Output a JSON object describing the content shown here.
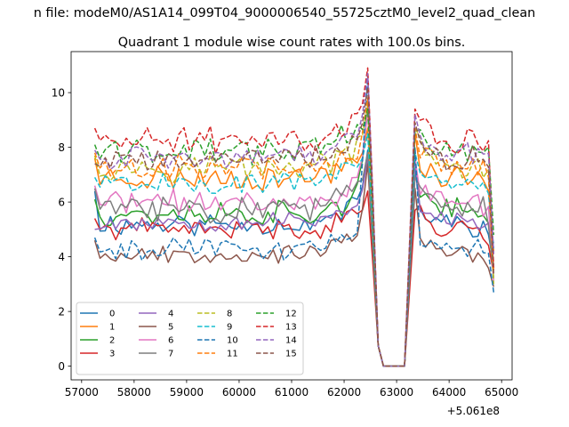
{
  "chart_data": {
    "type": "line",
    "suptitle": "n file: modeM0/AS1A14_099T04_9000006540_55725cztM0_level2_quad_clean",
    "title": "Quadrant 1 module wise count rates with 100.0s bins.",
    "xlabel": "",
    "ylabel": "",
    "x_offset_label": "+5.061e8",
    "xlim": [
      56800,
      65200
    ],
    "ylim": [
      -0.5,
      11.5
    ],
    "xticks": [
      "57000",
      "58000",
      "59000",
      "60000",
      "61000",
      "62000",
      "63000",
      "64000",
      "65000"
    ],
    "yticks": [
      "0",
      "2",
      "4",
      "6",
      "8",
      "10"
    ],
    "grid": false,
    "legend_position": "lower-left",
    "legend_columns": 4,
    "x": {
      "start": 57250,
      "step": 100,
      "count": 77
    },
    "gap_range": [
      62650,
      63150
    ],
    "peak": {
      "x": 62450,
      "values": [
        7.9,
        8.7,
        9.5,
        6.4,
        7.6,
        7.4,
        9.3,
        7.8,
        9.6,
        8.5,
        10.6,
        9.8,
        9.4,
        10.9,
        10.7,
        10.2
      ]
    },
    "post_peak": {
      "x": 63350,
      "values": [
        7.2,
        8.5,
        7.5,
        5.7,
        7.5,
        6.5,
        7.6,
        6.9,
        8.7,
        7.8,
        8.0,
        8.7,
        8.6,
        9.4,
        9.2,
        8.9
      ]
    },
    "end_values": [
      3.7,
      4.2,
      3.2,
      3.4,
      4.5,
      2.9,
      3.1,
      3.4,
      3.0,
      4.3,
      2.7,
      3.5,
      4.8,
      3.6,
      4.1,
      3.3
    ],
    "series": [
      {
        "name": "0",
        "color": "#1f77b4",
        "dash": "solid",
        "level": 5.2,
        "amp": 0.35,
        "start": 6.4,
        "seed": 11
      },
      {
        "name": "1",
        "color": "#ff7f0e",
        "dash": "solid",
        "level": 6.9,
        "amp": 0.4,
        "start": 7.6,
        "seed": 23
      },
      {
        "name": "2",
        "color": "#2ca02c",
        "dash": "solid",
        "level": 5.6,
        "amp": 0.4,
        "start": 6.1,
        "seed": 37
      },
      {
        "name": "3",
        "color": "#d62728",
        "dash": "solid",
        "level": 5.0,
        "amp": 0.3,
        "start": 5.4,
        "seed": 41
      },
      {
        "name": "4",
        "color": "#9467bd",
        "dash": "solid",
        "level": 5.3,
        "amp": 0.3,
        "start": 5.0,
        "seed": 53
      },
      {
        "name": "5",
        "color": "#8c564b",
        "dash": "solid",
        "level": 4.1,
        "amp": 0.25,
        "start": 4.6,
        "seed": 67
      },
      {
        "name": "6",
        "color": "#e377c2",
        "dash": "solid",
        "level": 6.0,
        "amp": 0.35,
        "start": 6.6,
        "seed": 71
      },
      {
        "name": "7",
        "color": "#7f7f7f",
        "dash": "solid",
        "level": 5.8,
        "amp": 0.4,
        "start": 6.5,
        "seed": 83
      },
      {
        "name": "8",
        "color": "#bcbd22",
        "dash": "dashed",
        "level": 7.3,
        "amp": 0.4,
        "start": 7.7,
        "seed": 97
      },
      {
        "name": "9",
        "color": "#17becf",
        "dash": "dashed",
        "level": 6.7,
        "amp": 0.3,
        "start": 6.9,
        "seed": 101
      },
      {
        "name": "10",
        "color": "#1f77b4",
        "dash": "dashed",
        "level": 4.3,
        "amp": 0.3,
        "start": 4.7,
        "seed": 113
      },
      {
        "name": "11",
        "color": "#ff7f0e",
        "dash": "dashed",
        "level": 7.3,
        "amp": 0.4,
        "start": 7.8,
        "seed": 127
      },
      {
        "name": "12",
        "color": "#2ca02c",
        "dash": "dashed",
        "level": 7.9,
        "amp": 0.4,
        "start": 8.1,
        "seed": 131
      },
      {
        "name": "13",
        "color": "#d62728",
        "dash": "dashed",
        "level": 8.3,
        "amp": 0.4,
        "start": 8.7,
        "seed": 149
      },
      {
        "name": "14",
        "color": "#9467bd",
        "dash": "dashed",
        "level": 7.7,
        "amp": 0.35,
        "start": 7.9,
        "seed": 157
      },
      {
        "name": "15",
        "color": "#8c564b",
        "dash": "dashed",
        "level": 7.6,
        "amp": 0.35,
        "start": 7.4,
        "seed": 163
      }
    ]
  }
}
